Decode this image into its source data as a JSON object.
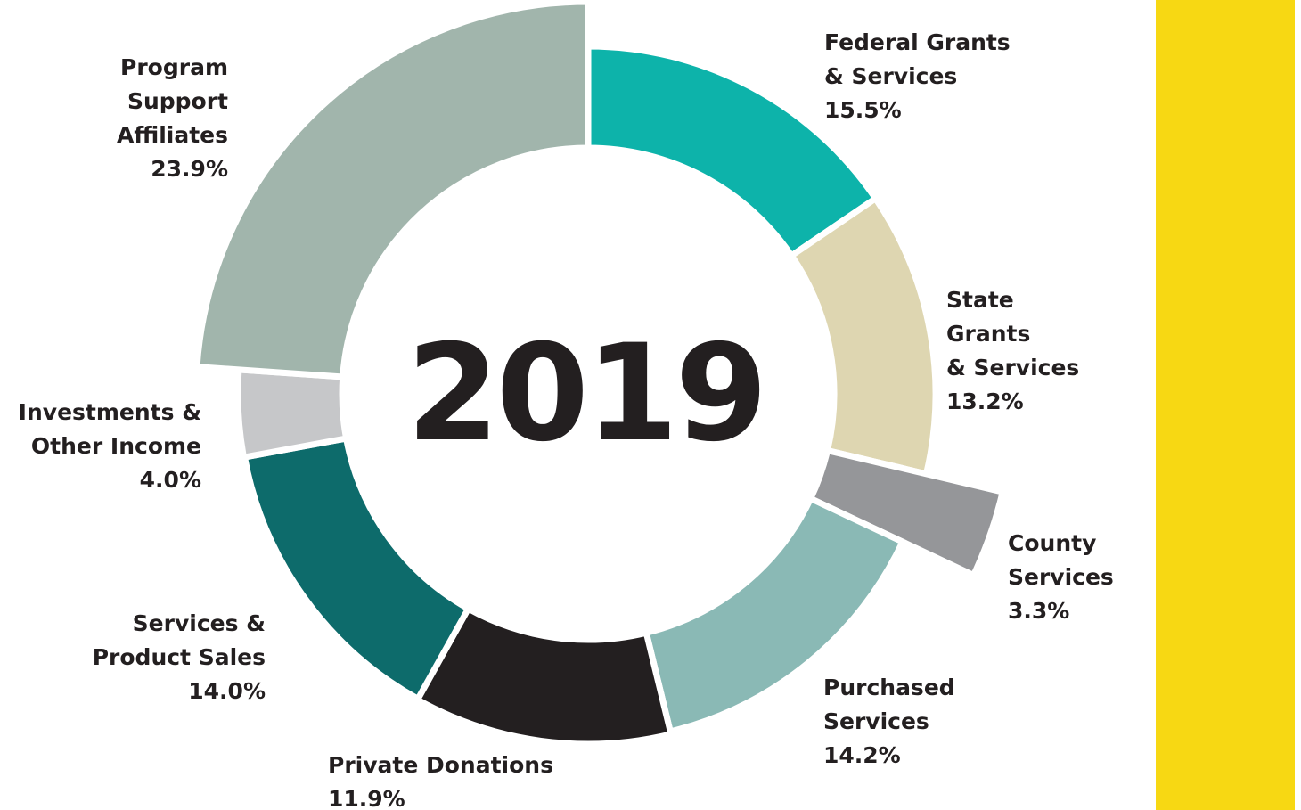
{
  "chart_data": {
    "type": "pie",
    "title": "2019",
    "categories": [
      "Federal Grants & Services",
      "State Grants & Services",
      "County Services",
      "Purchased Services",
      "Private Donations",
      "Services & Product Sales",
      "Investments & Other Income",
      "Program Support Affiliates"
    ],
    "values": [
      15.5,
      13.2,
      3.3,
      14.2,
      11.9,
      14.0,
      4.0,
      23.9
    ],
    "value_labels": [
      "15.5%",
      "13.2%",
      "3.3%",
      "14.2%",
      "11.9%",
      "14.0%",
      "4.0%",
      "23.9%"
    ],
    "colors": [
      "#0db3aa",
      "#ded6b1",
      "#959699",
      "#8ab9b5",
      "#231f20",
      "#0d6b6b",
      "#c6c7c9",
      "#a1b5ac"
    ]
  }
}
